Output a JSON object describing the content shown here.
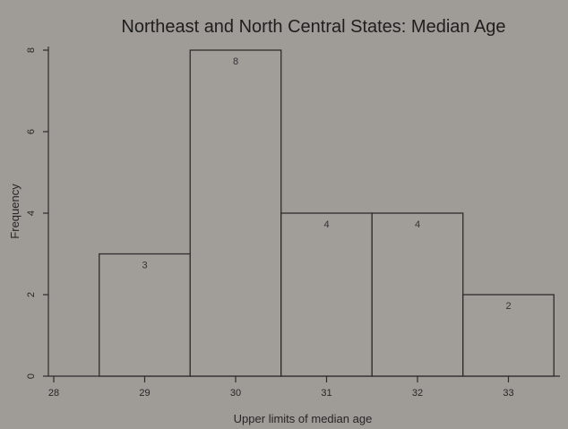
{
  "chart_data": {
    "type": "bar",
    "title": "Northeast and North Central States: Median Age",
    "xlabel": "Upper limits of median age",
    "ylabel": "Frequency",
    "x_ticks": [
      "28",
      "29",
      "30",
      "31",
      "32",
      "33"
    ],
    "y_ticks": [
      "0",
      "2",
      "4",
      "6",
      "8"
    ],
    "ylim": [
      0,
      8
    ],
    "bins": [
      {
        "upper": 29,
        "value": 3,
        "label": "3"
      },
      {
        "upper": 30,
        "value": 8,
        "label": "8"
      },
      {
        "upper": 31,
        "value": 4,
        "label": "4"
      },
      {
        "upper": 32,
        "value": 4,
        "label": "4"
      },
      {
        "upper": 33,
        "value": 2,
        "label": "2"
      }
    ],
    "grid": false,
    "legend": "none"
  }
}
